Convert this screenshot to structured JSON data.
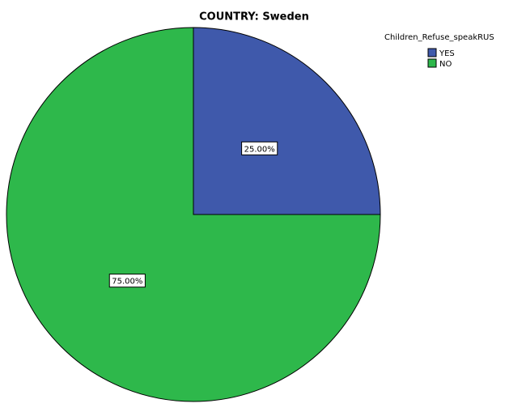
{
  "chart_data": {
    "type": "pie",
    "title": "COUNTRY: Sweden",
    "legend_title": "Children_Refuse_speakRUS",
    "categories": [
      "YES",
      "NO"
    ],
    "values": [
      25,
      75
    ],
    "value_labels": [
      "25.00%",
      "75.00%"
    ],
    "colors": [
      "#3f59ab",
      "#2eb84b"
    ],
    "legend": "top-right"
  }
}
